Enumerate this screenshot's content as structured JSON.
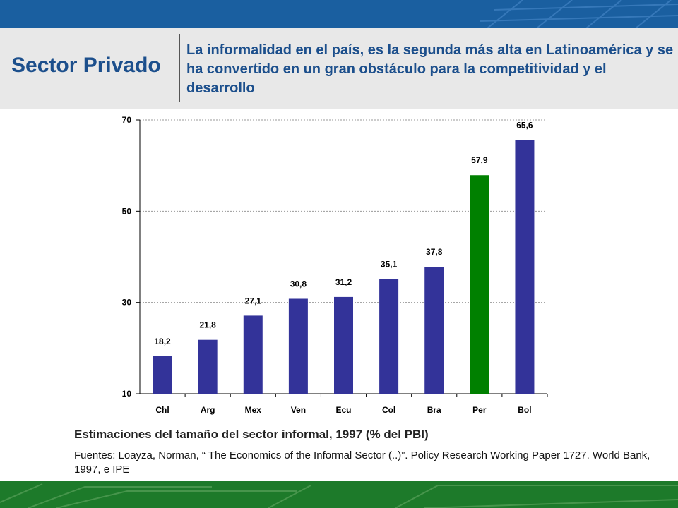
{
  "header": {
    "section_title": "Sector Privado",
    "headline": "La informalidad en el país, es la segunda más alta en Latinoamérica y se ha convertido en un gran obstáculo para la competitividad y el desarrollo"
  },
  "colors": {
    "top_bar": "#1a5fa0",
    "bottom_bar": "#1d7a2a",
    "bar_default": "#333399",
    "bar_highlight": "#008000",
    "title_text": "#1c4f8c"
  },
  "chart_data": {
    "type": "bar",
    "categories": [
      "Chl",
      "Arg",
      "Mex",
      "Ven",
      "Ecu",
      "Col",
      "Bra",
      "Per",
      "Bol"
    ],
    "values": [
      18.2,
      21.8,
      27.1,
      30.8,
      31.2,
      35.1,
      37.8,
      57.9,
      65.6
    ],
    "value_labels": [
      "18,2",
      "21,8",
      "27,1",
      "30,8",
      "31,2",
      "35,1",
      "37,8",
      "57,9",
      "65,6"
    ],
    "highlight_category": "Per",
    "ylim": [
      10,
      70
    ],
    "yticks": [
      10,
      30,
      50,
      70
    ],
    "ytick_labels": [
      "10",
      "30",
      "50",
      "70"
    ],
    "grid": true,
    "title": "Estimaciones del tamaño del sector informal, 1997 (% del PBI)",
    "xlabel": "",
    "ylabel": ""
  },
  "footer": {
    "source": "Fuentes: Loayza, Norman, “ The Economics of the Informal Sector (..)”.  Policy Research Working Paper 1727. World Bank, 1997, e IPE"
  }
}
